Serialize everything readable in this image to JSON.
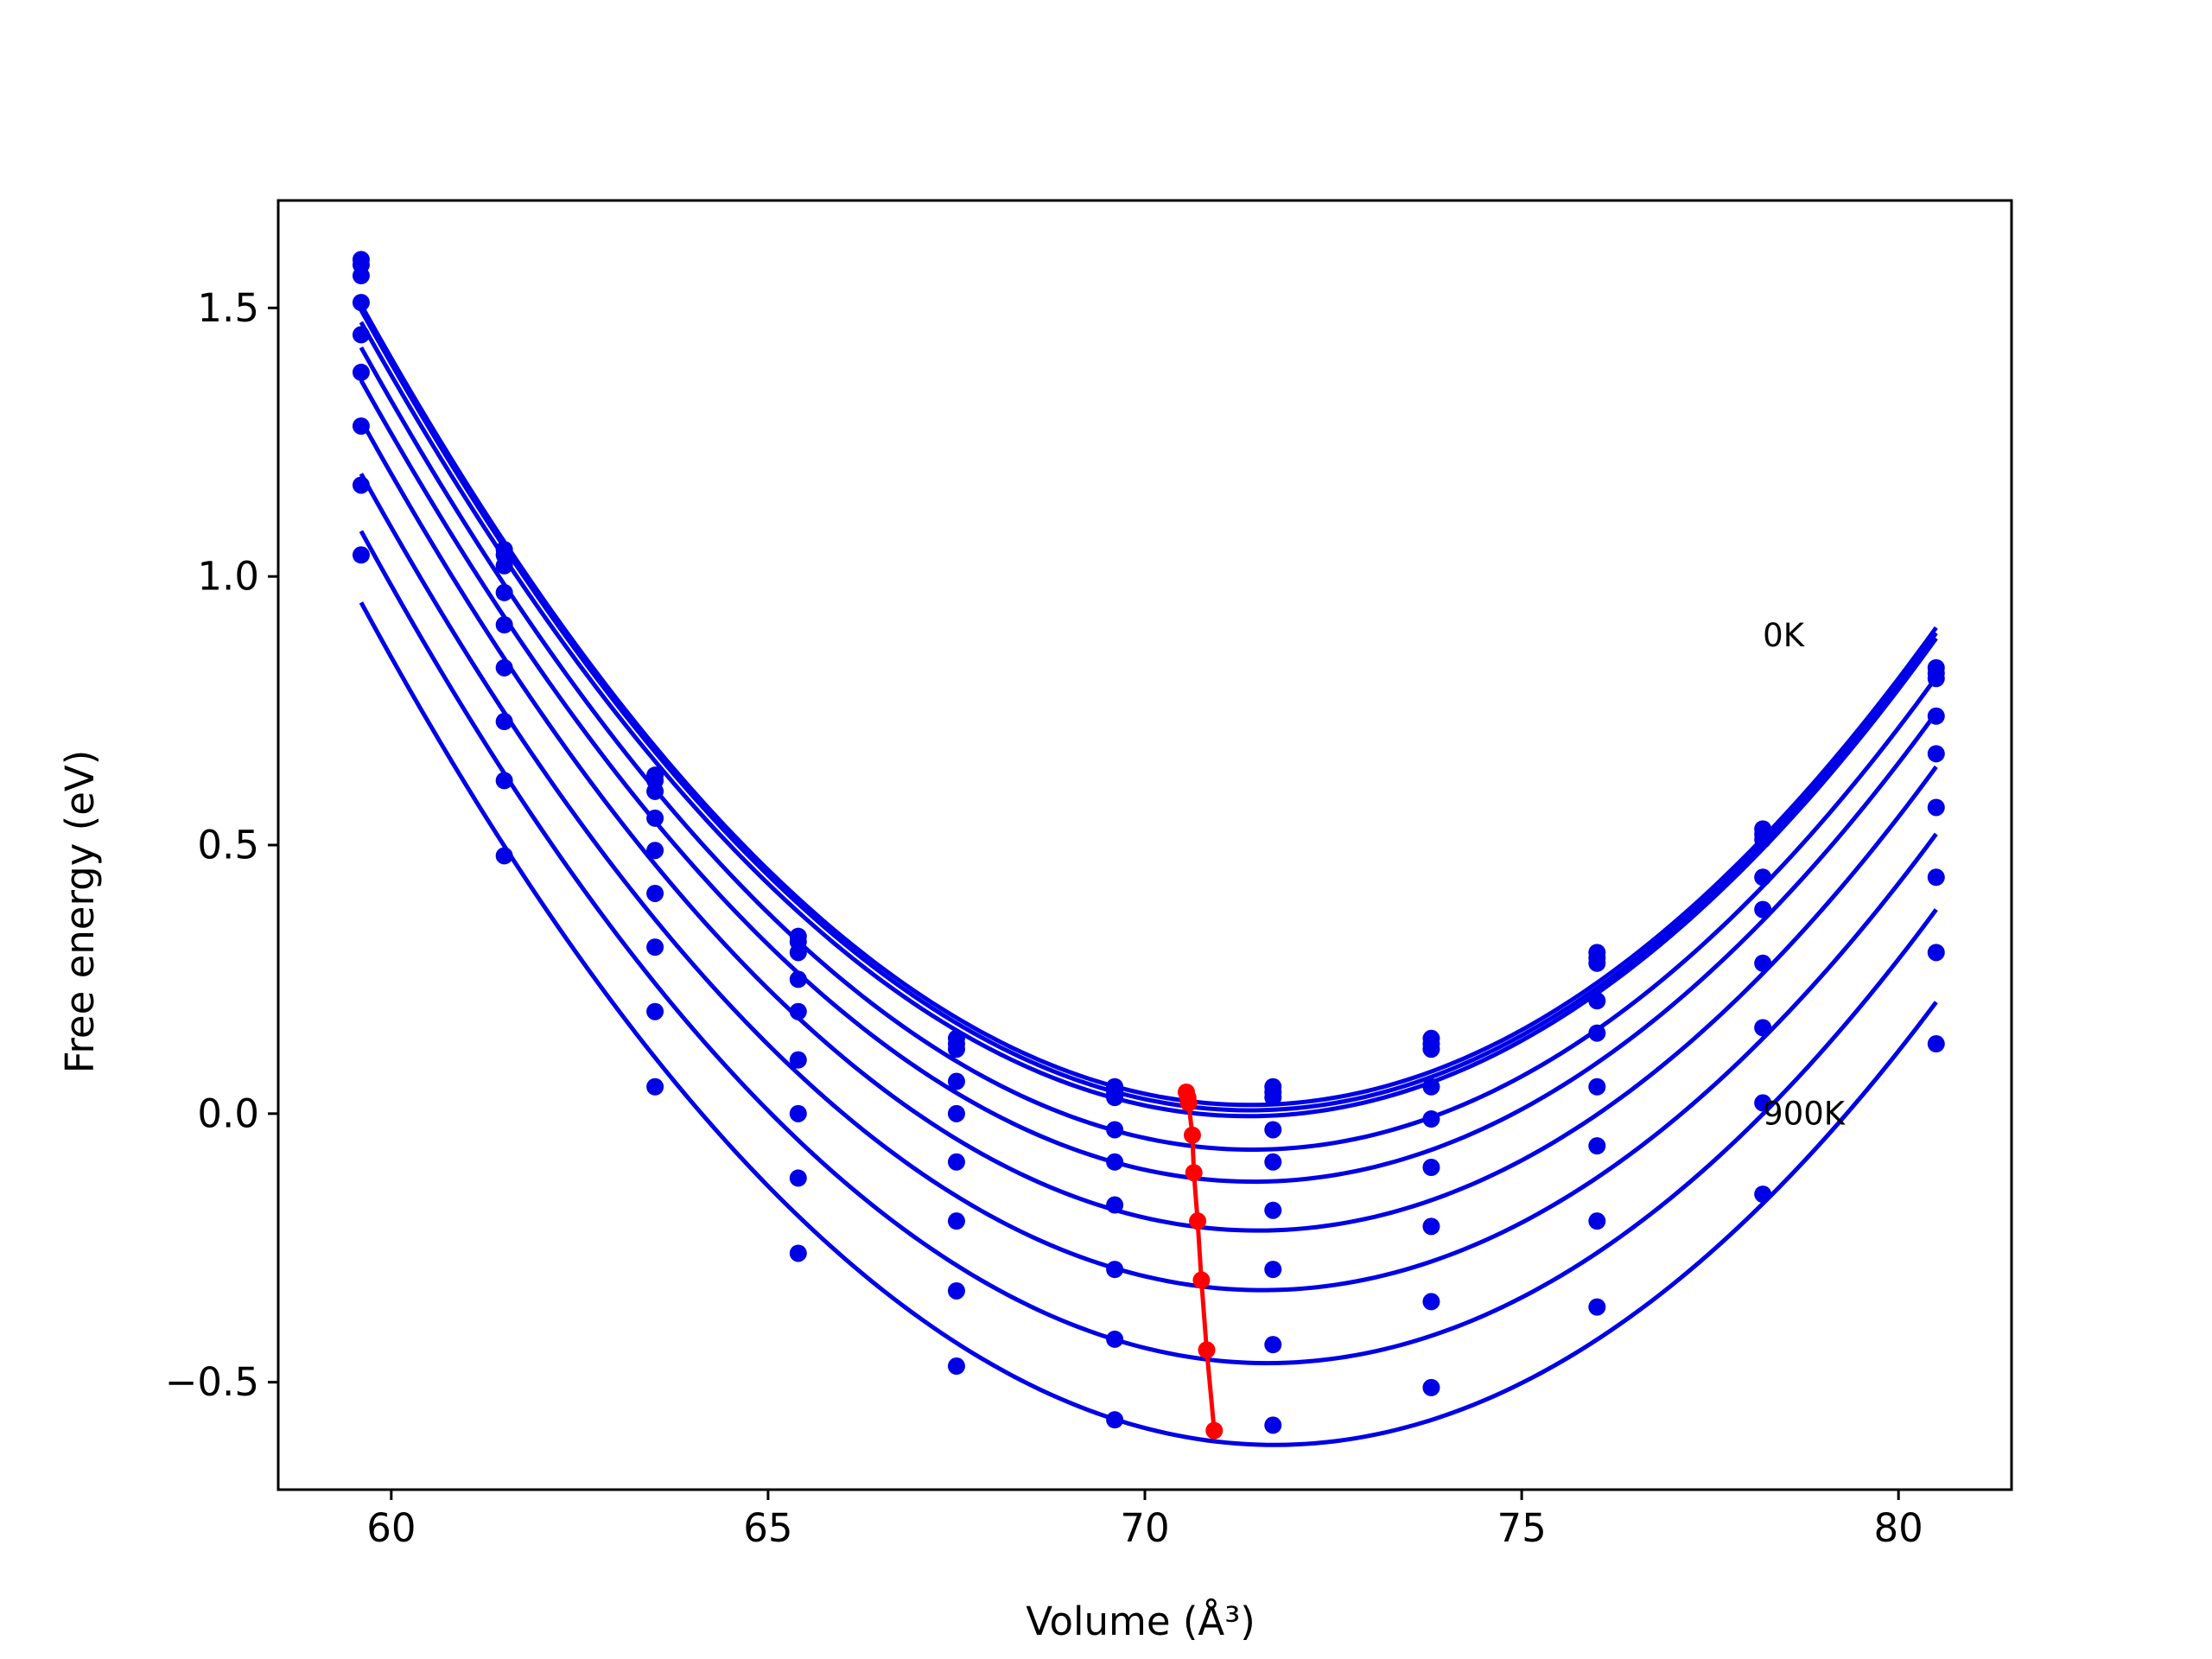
{
  "chart_data": {
    "type": "line",
    "xlabel": "Volume (Å³)",
    "ylabel": "Free energy (eV)",
    "xlim": [
      58.5,
      81.5
    ],
    "ylim": [
      -0.7,
      1.7
    ],
    "xticks": [
      60,
      65,
      70,
      75,
      80
    ],
    "yticks": [
      -0.5,
      0.0,
      0.5,
      1.0,
      1.5
    ],
    "xtick_labels": [
      "60",
      "65",
      "70",
      "75",
      "80"
    ],
    "ytick_labels": [
      "−0.5",
      "0.0",
      "0.5",
      "1.0",
      "1.5"
    ],
    "grid": false,
    "legend": "none",
    "annotations": [
      {
        "text": "0K",
        "x": 78.2,
        "y": 0.89
      },
      {
        "text": "900K",
        "x": 78.2,
        "y": 0.0
      }
    ],
    "x": [
      59.6,
      61.5,
      63.5,
      65.4,
      67.5,
      69.6,
      71.7,
      73.8,
      76.0,
      78.2,
      80.5
    ],
    "series": [
      {
        "values": [
          1.59,
          1.05,
          0.63,
          0.33,
          0.14,
          0.05,
          0.05,
          0.14,
          0.3,
          0.53,
          0.83
        ],
        "min_x": 70.55,
        "min_y": 0.04
      },
      {
        "values": [
          1.58,
          1.04,
          0.62,
          0.32,
          0.13,
          0.04,
          0.04,
          0.13,
          0.29,
          0.52,
          0.82
        ],
        "min_x": 70.57,
        "min_y": 0.03
      },
      {
        "values": [
          1.56,
          1.02,
          0.6,
          0.3,
          0.12,
          0.03,
          0.03,
          0.12,
          0.28,
          0.51,
          0.81
        ],
        "min_x": 70.58,
        "min_y": 0.02
      },
      {
        "values": [
          1.51,
          0.97,
          0.55,
          0.25,
          0.06,
          -0.03,
          -0.03,
          0.05,
          0.21,
          0.44,
          0.74
        ],
        "min_x": 70.63,
        "min_y": -0.04
      },
      {
        "values": [
          1.45,
          0.91,
          0.49,
          0.19,
          0.0,
          -0.09,
          -0.09,
          -0.01,
          0.15,
          0.38,
          0.67
        ],
        "min_x": 70.65,
        "min_y": -0.11
      },
      {
        "values": [
          1.38,
          0.83,
          0.41,
          0.1,
          -0.09,
          -0.17,
          -0.18,
          -0.1,
          0.05,
          0.28,
          0.57
        ],
        "min_x": 70.7,
        "min_y": -0.2
      },
      {
        "values": [
          1.28,
          0.73,
          0.31,
          0.0,
          -0.2,
          -0.29,
          -0.29,
          -0.21,
          -0.06,
          0.16,
          0.44
        ],
        "min_x": 70.75,
        "min_y": -0.31
      },
      {
        "values": [
          1.17,
          0.62,
          0.19,
          -0.12,
          -0.33,
          -0.42,
          -0.43,
          -0.35,
          -0.2,
          0.02,
          0.3
        ],
        "min_x": 70.82,
        "min_y": -0.44
      },
      {
        "values": [
          1.04,
          0.48,
          0.05,
          -0.26,
          -0.47,
          -0.57,
          -0.58,
          -0.51,
          -0.36,
          -0.15,
          0.13
        ],
        "min_x": 70.92,
        "min_y": -0.59
      }
    ],
    "colors": {
      "curves": "#0000e6",
      "minima": "#ff0000",
      "axes": "#000000"
    }
  }
}
